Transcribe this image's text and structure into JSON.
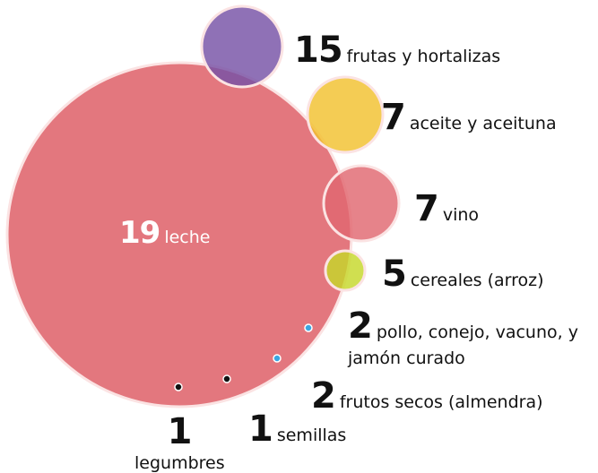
{
  "chart_data": {
    "type": "bubble",
    "categories": [
      "leche",
      "frutas y hortalizas",
      "aceite y aceituna",
      "vino",
      "cereales (arroz)",
      "pollo, conejo, vacuno, y jamón curado",
      "frutos secos (almendra)",
      "semillas",
      "legumbres"
    ],
    "values": [
      19,
      15,
      7,
      7,
      5,
      2,
      2,
      1,
      1
    ],
    "colors": [
      "#e06870",
      "#7652a6",
      "#f2c12e",
      "#e06870",
      "#c6d82a",
      "#3aa6e2",
      "#3aa6e2",
      "#111111",
      "#111111"
    ]
  }
}
